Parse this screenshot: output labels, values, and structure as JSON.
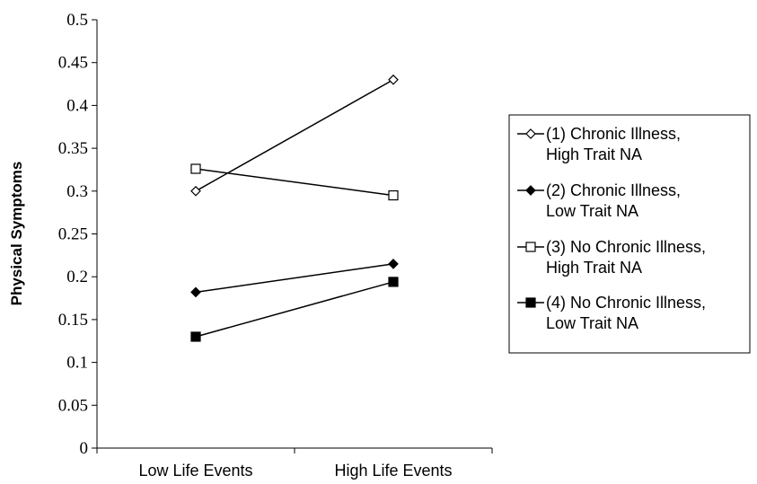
{
  "chart_data": {
    "type": "line",
    "title": "",
    "xlabel": "",
    "ylabel": "Physical Symptoms",
    "categories": [
      "Low Life Events",
      "High Life Events"
    ],
    "ylim": [
      0,
      0.5
    ],
    "yticks": [
      "0",
      "0.05",
      "0.1",
      "0.15",
      "0.2",
      "0.25",
      "0.3",
      "0.35",
      "0.4",
      "0.45",
      "0.5"
    ],
    "grid": false,
    "legend_position": "right",
    "series": [
      {
        "name_line1": "(1) Chronic Illness,",
        "name_line2": "High Trait NA",
        "marker": "diamond-open",
        "color": "#000000",
        "values": [
          0.3,
          0.43
        ]
      },
      {
        "name_line1": "(2) Chronic Illness,",
        "name_line2": "Low Trait NA",
        "marker": "diamond-filled",
        "color": "#000000",
        "values": [
          0.182,
          0.215
        ]
      },
      {
        "name_line1": "(3) No Chronic Illness,",
        "name_line2": "High Trait NA",
        "marker": "square-open",
        "color": "#000000",
        "values": [
          0.326,
          0.295
        ]
      },
      {
        "name_line1": "(4) No Chronic Illness,",
        "name_line2": "Low Trait NA",
        "marker": "square-filled",
        "color": "#000000",
        "values": [
          0.13,
          0.194
        ]
      }
    ]
  }
}
